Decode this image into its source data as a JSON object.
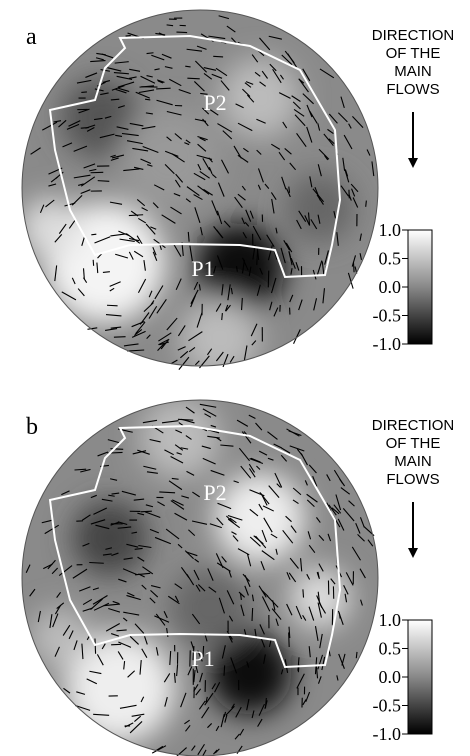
{
  "panels": [
    {
      "label": "a",
      "regions": [
        "P2",
        "P1"
      ],
      "direction": [
        "DIRECTION",
        "OF THE",
        "MAIN",
        "FLOWS"
      ],
      "colorbar": {
        "lim": [
          -1,
          1
        ],
        "ticks": [
          {
            "value": 1,
            "label": "1.0"
          },
          0.5,
          {
            "value": 0,
            "label": "0.0"
          },
          -0.5,
          {
            "value": -1,
            "label": "-1.0"
          }
        ]
      }
    },
    {
      "label": "b",
      "regions": [
        "P2",
        "P1"
      ],
      "direction": [
        "DIRECTION",
        "OF THE",
        "MAIN",
        "FLOWS"
      ],
      "colorbar": {
        "lim": [
          -1,
          1
        ],
        "ticks": [
          {
            "value": 1,
            "label": "1.0"
          },
          0.5,
          {
            "value": 0,
            "label": "0.0"
          },
          -0.5,
          {
            "value": -1,
            "label": "-1.0"
          }
        ]
      }
    }
  ]
}
